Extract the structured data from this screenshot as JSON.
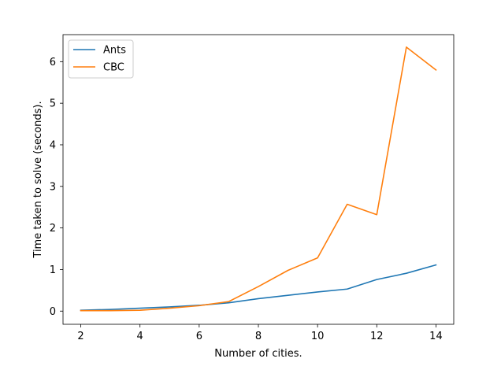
{
  "chart_data": {
    "type": "line",
    "xlabel": "Number of cities.",
    "ylabel": "Time taken to solve (seconds).",
    "xlim": [
      1.4,
      14.6
    ],
    "ylim": [
      -0.317,
      6.65
    ],
    "xticks": [
      2,
      4,
      6,
      8,
      10,
      12,
      14
    ],
    "xtick_labels": [
      "2",
      "4",
      "6",
      "8",
      "10",
      "12",
      "14"
    ],
    "yticks": [
      0,
      1,
      2,
      3,
      4,
      5,
      6
    ],
    "ytick_labels": [
      "0",
      "1",
      "2",
      "3",
      "4",
      "5",
      "6"
    ],
    "grid": false,
    "legend_position": "top-left",
    "x": [
      2,
      3,
      4,
      5,
      6,
      7,
      8,
      9,
      10,
      11,
      12,
      13,
      14
    ],
    "series": [
      {
        "name": "Ants",
        "color": "#1f77b4",
        "values": [
          0.02,
          0.04,
          0.07,
          0.1,
          0.14,
          0.2,
          0.3,
          0.38,
          0.46,
          0.53,
          0.76,
          0.91,
          1.11
        ]
      },
      {
        "name": "CBC",
        "color": "#ff7f0e",
        "values": [
          0.01,
          0.01,
          0.02,
          0.07,
          0.13,
          0.23,
          0.59,
          0.98,
          1.28,
          2.57,
          2.32,
          6.35,
          5.8
        ]
      }
    ]
  }
}
